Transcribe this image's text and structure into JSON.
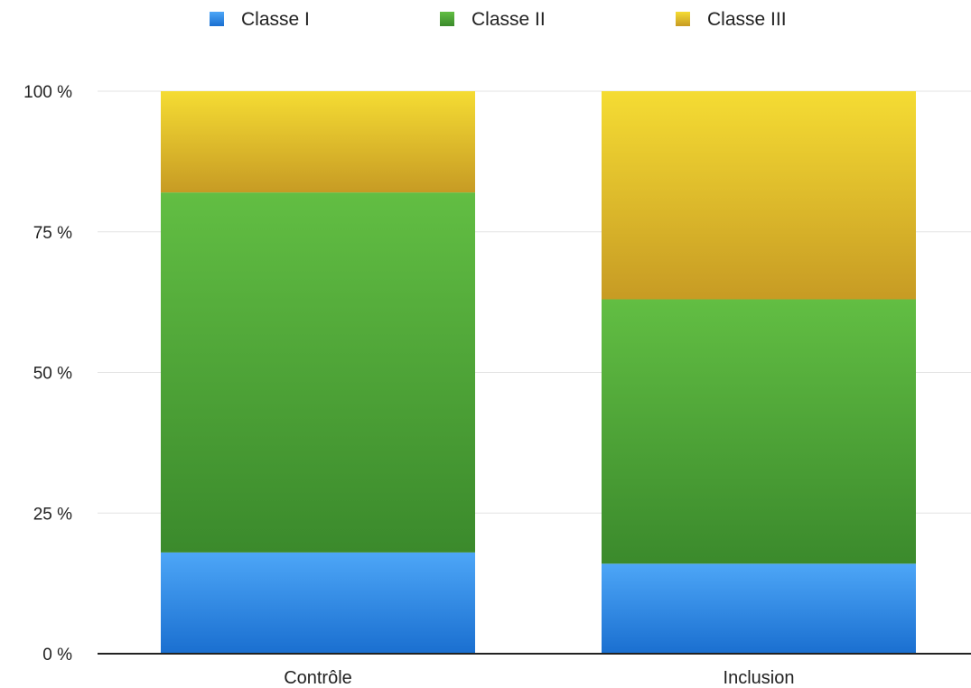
{
  "chart_data": {
    "type": "bar",
    "stacked": true,
    "normalized_percent": true,
    "categories": [
      "Contrôle",
      "Inclusion"
    ],
    "series": [
      {
        "name": "Classe I",
        "values": [
          18,
          16
        ],
        "color": "#3a8ee6"
      },
      {
        "name": "Classe II",
        "values": [
          64,
          47
        ],
        "color": "#4fa83a"
      },
      {
        "name": "Classe III",
        "values": [
          18,
          37
        ],
        "color": "#e0be2a"
      }
    ],
    "ylim": [
      0,
      100
    ],
    "yticks": [
      0,
      25,
      50,
      75,
      100
    ],
    "ytick_labels": [
      "0 %",
      "25 %",
      "50 %",
      "75 %",
      "100 %"
    ],
    "title": "",
    "xlabel": "",
    "ylabel": "",
    "legend_position": "top",
    "grid": true
  }
}
